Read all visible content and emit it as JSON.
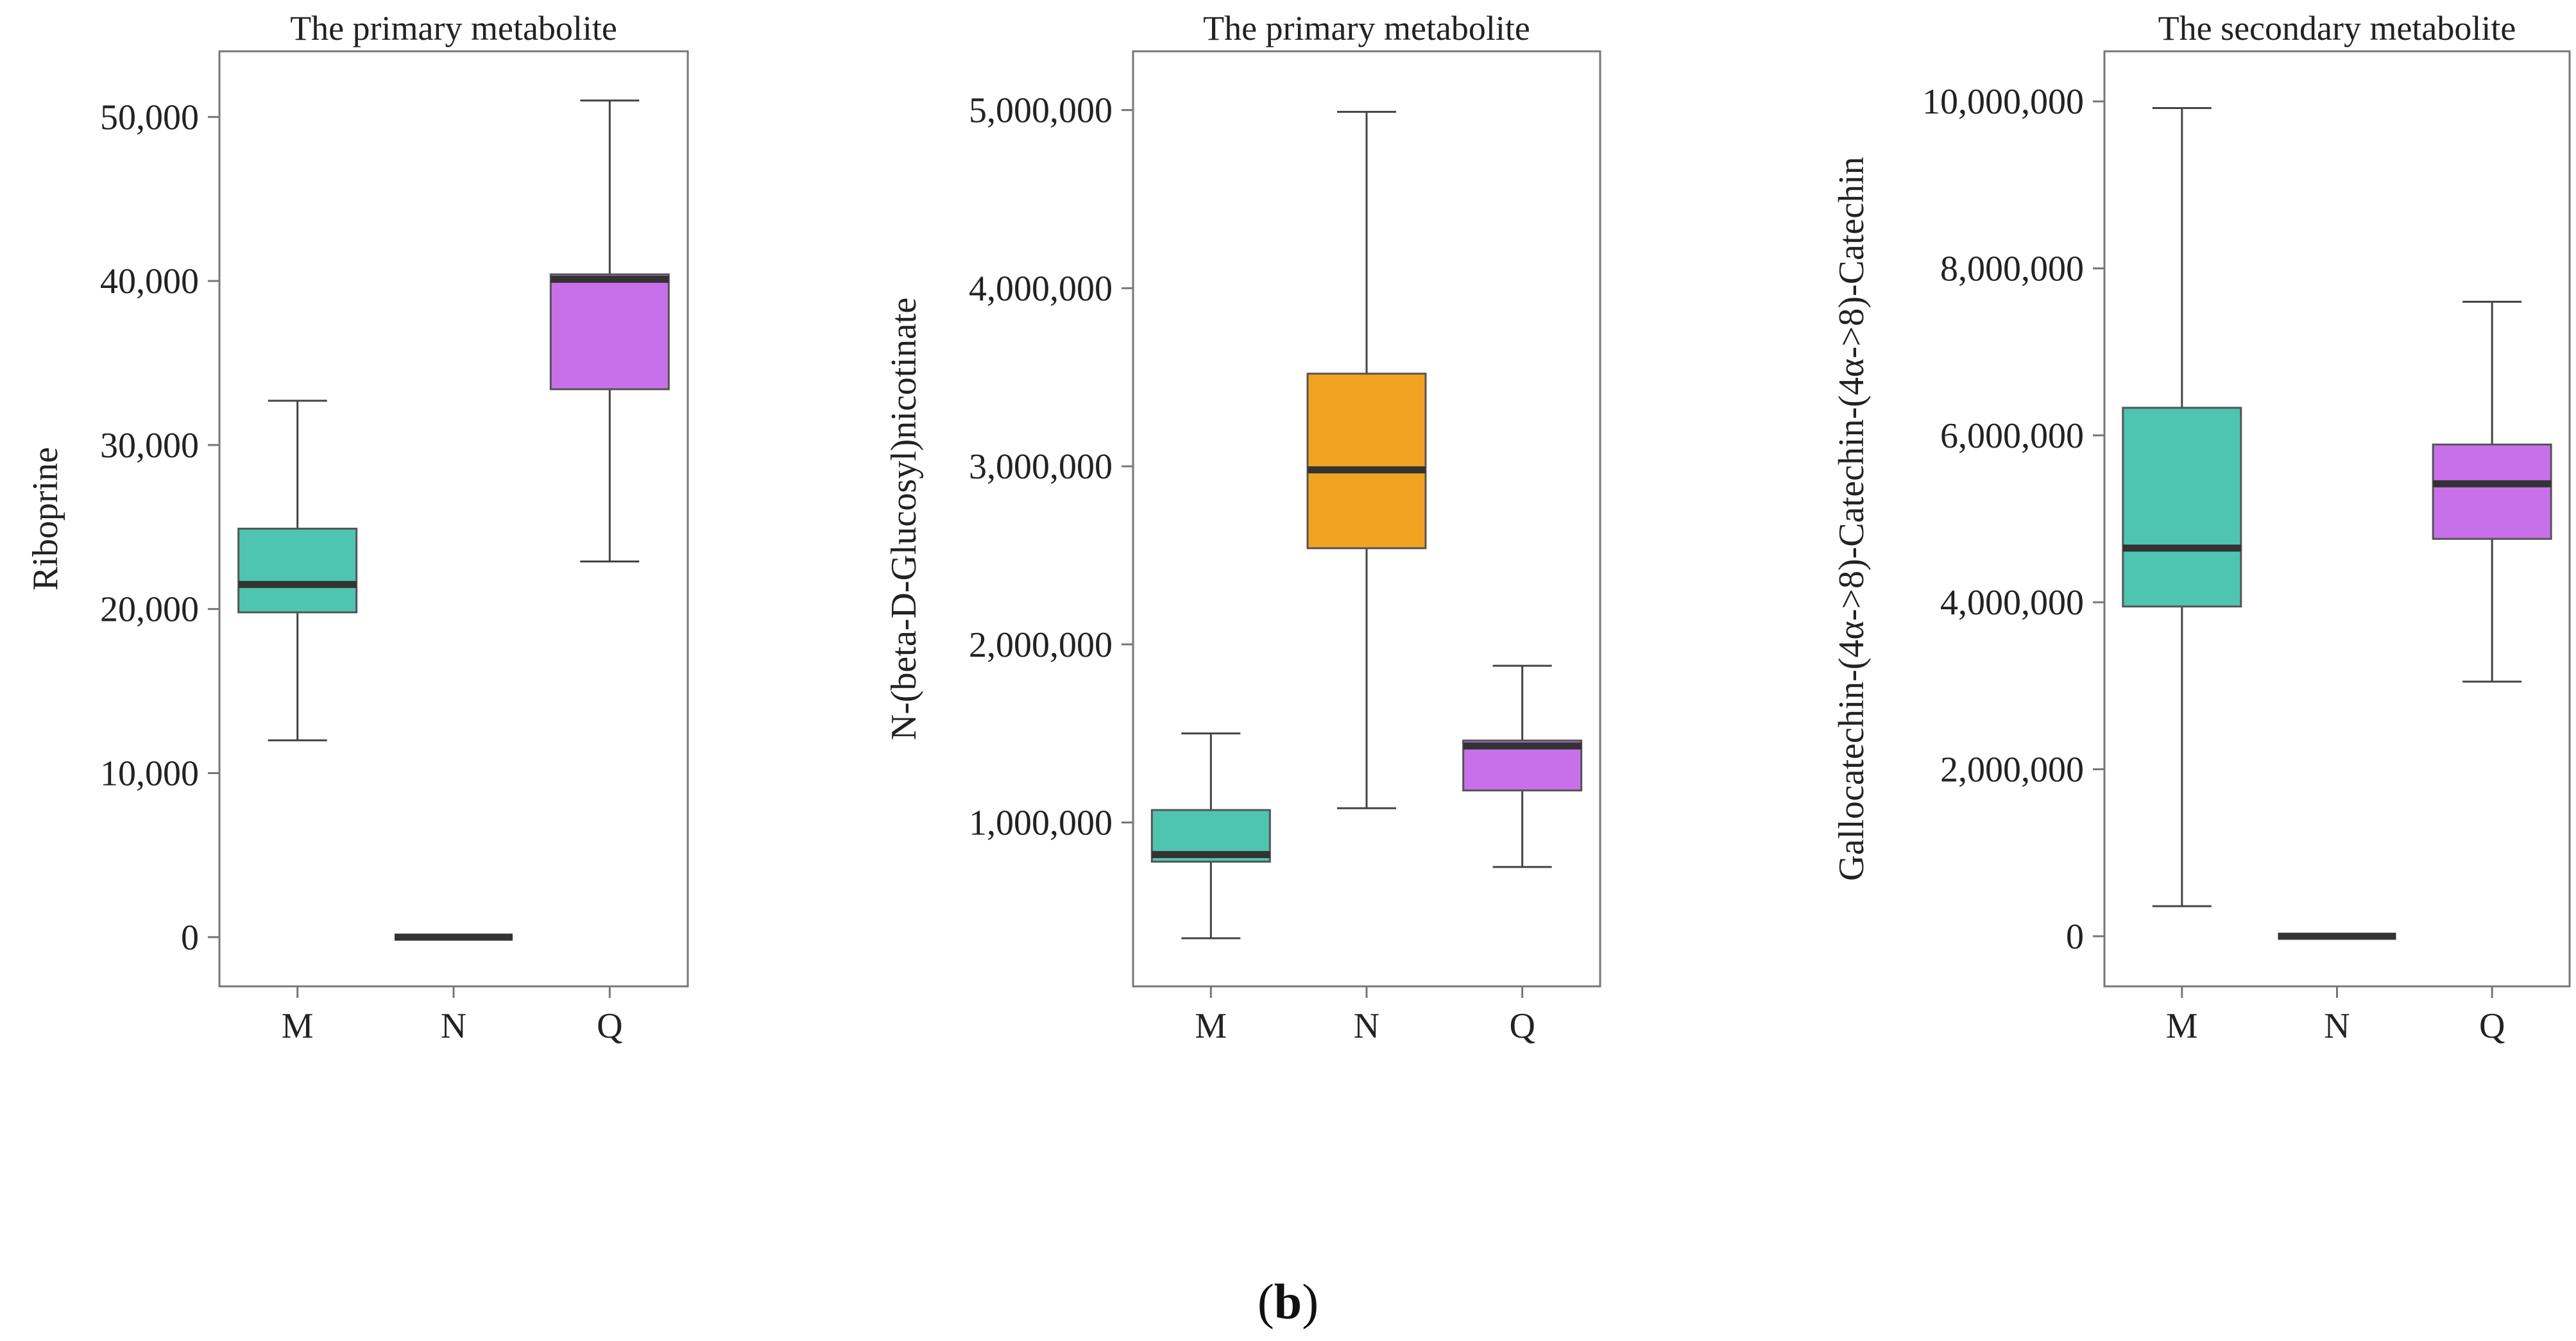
{
  "figure": {
    "panel_label_open": "(",
    "panel_label_letter": "b",
    "panel_label_close": ")"
  },
  "colors": {
    "M": "#4dc5b0",
    "N": "#f2a321",
    "Q": "#c870ea",
    "median": "#333333",
    "frame": "#777777",
    "whisker": "#444444"
  },
  "chart_data": [
    {
      "type": "box",
      "title": "The primary metabolite",
      "ylabel": "Riboprine",
      "xlabel": "",
      "categories": [
        "M",
        "N",
        "Q"
      ],
      "ylim": [
        -3000,
        54000
      ],
      "yticks": [
        0,
        10000,
        20000,
        30000,
        40000,
        50000
      ],
      "ytick_labels": [
        "0",
        "10,000",
        "20,000",
        "30,000",
        "40,000",
        "50,000"
      ],
      "boxes": [
        {
          "group": "M",
          "min": 12000,
          "q1": 19800,
          "median": 21500,
          "q3": 24900,
          "max": 32700
        },
        {
          "group": "N",
          "min": 0,
          "q1": 0,
          "median": 0,
          "q3": 0,
          "max": 0
        },
        {
          "group": "Q",
          "min": 22900,
          "q1": 33400,
          "median": 40100,
          "q3": 40400,
          "max": 51000
        }
      ]
    },
    {
      "type": "box",
      "title": "The primary metabolite",
      "ylabel": "N-(beta-D-Glucosyl)nicotinate",
      "xlabel": "",
      "categories": [
        "M",
        "N",
        "Q"
      ],
      "ylim": [
        80000,
        5330000
      ],
      "yticks": [
        1000000,
        2000000,
        3000000,
        4000000,
        5000000
      ],
      "ytick_labels": [
        "1,000,000",
        "2,000,000",
        "3,000,000",
        "4,000,000",
        "5,000,000"
      ],
      "boxes": [
        {
          "group": "M",
          "min": 350000,
          "q1": 780000,
          "median": 820000,
          "q3": 1070000,
          "max": 1500000
        },
        {
          "group": "N",
          "min": 1080000,
          "q1": 2540000,
          "median": 2980000,
          "q3": 3520000,
          "max": 4990000
        },
        {
          "group": "Q",
          "min": 750000,
          "q1": 1180000,
          "median": 1430000,
          "q3": 1460000,
          "max": 1880000
        }
      ]
    },
    {
      "type": "box",
      "title": "The secondary metabolite",
      "ylabel": "Gallocatechin-(4α->8)-Catechin-(4α->8)-Catechin",
      "xlabel": "",
      "categories": [
        "M",
        "N",
        "Q"
      ],
      "ylim": [
        -600000,
        10600000
      ],
      "yticks": [
        0,
        2000000,
        4000000,
        6000000,
        8000000,
        10000000
      ],
      "ytick_labels": [
        "0",
        "2,000,000",
        "4,000,000",
        "6,000,000",
        "8,000,000",
        "10,000,000"
      ],
      "boxes": [
        {
          "group": "M",
          "min": 360000,
          "q1": 3950000,
          "median": 4650000,
          "q3": 6330000,
          "max": 9920000
        },
        {
          "group": "N",
          "min": 0,
          "q1": 0,
          "median": 0,
          "q3": 0,
          "max": 0
        },
        {
          "group": "Q",
          "min": 3050000,
          "q1": 4760000,
          "median": 5420000,
          "q3": 5890000,
          "max": 7600000
        }
      ]
    }
  ]
}
